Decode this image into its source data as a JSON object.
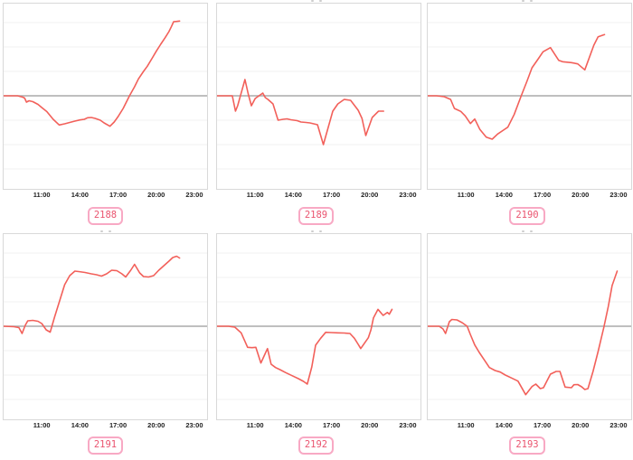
{
  "style": {
    "line_color": "#f2605a",
    "grid_color": "#f2f2f2",
    "baseline_color": "#aaaaaa",
    "box_border_color": "#d9d9d9",
    "axis_label_color": "#222222",
    "badge_border_color": "#f8a9c4",
    "badge_text_color": "#ea546f",
    "clipped_title_mark_color": "#c0c0c0"
  },
  "axis": {
    "tick_labels": [
      "11:00",
      "14:00",
      "17:00",
      "20:00",
      "23:00"
    ],
    "tick_hours": [
      11,
      14,
      17,
      20,
      23
    ],
    "domain_hours": [
      8,
      24
    ],
    "y_axis_labels": "none (unlabeled relative scale, gray baseline = 0)"
  },
  "chart_data": [
    {
      "type": "line",
      "badge": "2188",
      "title_clipped": false,
      "baseline": 0,
      "y_unit": "relative (no y-axis labels shown)",
      "points": [
        [
          8,
          0
        ],
        [
          9.1,
          0
        ],
        [
          9.5,
          -1.5
        ],
        [
          9.65,
          -2.5
        ],
        [
          9.8,
          -7
        ],
        [
          10.0,
          -5.5
        ],
        [
          10.3,
          -6.5
        ],
        [
          10.7,
          -9.5
        ],
        [
          11.0,
          -13
        ],
        [
          11.4,
          -17.5
        ],
        [
          11.9,
          -26
        ],
        [
          12.37,
          -32.3
        ],
        [
          12.8,
          -31
        ],
        [
          13.2,
          -29.5
        ],
        [
          13.6,
          -28
        ],
        [
          14.0,
          -26.7
        ],
        [
          14.35,
          -26
        ],
        [
          14.6,
          -24.3
        ],
        [
          14.9,
          -24
        ],
        [
          15.2,
          -25
        ],
        [
          15.6,
          -27
        ],
        [
          15.9,
          -30
        ],
        [
          16.36,
          -33.7
        ],
        [
          16.7,
          -29
        ],
        [
          17.0,
          -23
        ],
        [
          17.4,
          -14
        ],
        [
          17.9,
          0
        ],
        [
          18.3,
          10
        ],
        [
          18.6,
          18.7
        ],
        [
          19.0,
          27
        ],
        [
          19.3,
          32.7
        ],
        [
          19.7,
          42
        ],
        [
          20.0,
          49.3
        ],
        [
          20.35,
          57
        ],
        [
          20.7,
          64.3
        ],
        [
          21.0,
          71
        ],
        [
          21.2,
          76.7
        ],
        [
          21.37,
          82
        ],
        [
          21.6,
          82.3
        ],
        [
          21.84,
          82.7
        ]
      ]
    },
    {
      "type": "line",
      "badge": "2189",
      "title_clipped": true,
      "baseline": 0,
      "y_unit": "relative (no y-axis labels shown)",
      "points": [
        [
          8,
          0
        ],
        [
          9.2,
          0
        ],
        [
          9.45,
          -17
        ],
        [
          9.62,
          -11
        ],
        [
          9.9,
          3
        ],
        [
          10.2,
          18
        ],
        [
          10.45,
          2
        ],
        [
          10.7,
          -11
        ],
        [
          11.0,
          -3
        ],
        [
          11.3,
          0
        ],
        [
          11.6,
          3
        ],
        [
          11.8,
          -2
        ],
        [
          12.0,
          -4
        ],
        [
          12.4,
          -9
        ],
        [
          12.8,
          -27
        ],
        [
          13.2,
          -26
        ],
        [
          13.5,
          -25.5
        ],
        [
          13.8,
          -26.5
        ],
        [
          14.3,
          -27.5
        ],
        [
          14.6,
          -29
        ],
        [
          15.0,
          -29.5
        ],
        [
          15.3,
          -30
        ],
        [
          15.9,
          -32
        ],
        [
          16.36,
          -54
        ],
        [
          17.1,
          -17
        ],
        [
          17.5,
          -9
        ],
        [
          18.0,
          -4
        ],
        [
          18.5,
          -5
        ],
        [
          19.1,
          -16
        ],
        [
          19.4,
          -25
        ],
        [
          19.7,
          -44
        ],
        [
          20.2,
          -24
        ],
        [
          20.7,
          -17
        ],
        [
          21.1,
          -17
        ]
      ]
    },
    {
      "type": "line",
      "badge": "2190",
      "title_clipped": true,
      "baseline": 0,
      "y_unit": "relative (no y-axis labels shown)",
      "points": [
        [
          8,
          0
        ],
        [
          8.7,
          0
        ],
        [
          9.3,
          -1
        ],
        [
          9.8,
          -4
        ],
        [
          10.1,
          -14
        ],
        [
          10.6,
          -17.3
        ],
        [
          10.95,
          -22.3
        ],
        [
          11.36,
          -30.7
        ],
        [
          11.7,
          -25.7
        ],
        [
          12.1,
          -37.3
        ],
        [
          12.6,
          -45.7
        ],
        [
          13.07,
          -48
        ],
        [
          13.5,
          -42.3
        ],
        [
          13.95,
          -38
        ],
        [
          14.3,
          -34.7
        ],
        [
          14.8,
          -20.7
        ],
        [
          15.35,
          0
        ],
        [
          15.8,
          16
        ],
        [
          16.2,
          31
        ],
        [
          16.7,
          41
        ],
        [
          17.07,
          48.7
        ],
        [
          17.65,
          53.3
        ],
        [
          18.3,
          39.3
        ],
        [
          18.6,
          37.7
        ],
        [
          19.3,
          36.7
        ],
        [
          19.8,
          35.3
        ],
        [
          20.35,
          28.7
        ],
        [
          21.06,
          56
        ],
        [
          21.4,
          65.3
        ],
        [
          21.9,
          67.7
        ]
      ]
    },
    {
      "type": "line",
      "badge": "2191",
      "title_clipped": true,
      "baseline": 0,
      "y_unit": "relative (no y-axis labels shown)",
      "points": [
        [
          8,
          0
        ],
        [
          8.8,
          -0.5
        ],
        [
          9.2,
          -1.5
        ],
        [
          9.45,
          -8
        ],
        [
          9.7,
          1
        ],
        [
          9.9,
          6
        ],
        [
          10.3,
          6.5
        ],
        [
          10.7,
          5.5
        ],
        [
          11.0,
          3
        ],
        [
          11.35,
          -4
        ],
        [
          11.66,
          -6.5
        ],
        [
          12.0,
          10
        ],
        [
          12.4,
          28
        ],
        [
          12.8,
          46
        ],
        [
          13.2,
          56
        ],
        [
          13.6,
          61
        ],
        [
          13.9,
          60.5
        ],
        [
          14.4,
          59.5
        ],
        [
          14.9,
          58
        ],
        [
          15.3,
          57
        ],
        [
          15.7,
          55.5
        ],
        [
          16.1,
          58
        ],
        [
          16.5,
          62
        ],
        [
          16.9,
          61.5
        ],
        [
          17.3,
          58
        ],
        [
          17.6,
          54.5
        ],
        [
          18.0,
          62
        ],
        [
          18.3,
          68.5
        ],
        [
          18.7,
          59
        ],
        [
          19.0,
          55
        ],
        [
          19.4,
          54.5
        ],
        [
          19.8,
          56
        ],
        [
          20.2,
          62
        ],
        [
          20.6,
          67
        ],
        [
          21.0,
          72
        ],
        [
          21.3,
          76
        ],
        [
          21.6,
          77.5
        ],
        [
          21.84,
          75.5
        ]
      ]
    },
    {
      "type": "line",
      "badge": "2192",
      "title_clipped": true,
      "baseline": 0,
      "y_unit": "relative (no y-axis labels shown)",
      "points": [
        [
          8,
          0
        ],
        [
          8.9,
          0
        ],
        [
          9.4,
          -1
        ],
        [
          9.9,
          -7.3
        ],
        [
          10.4,
          -23.3
        ],
        [
          10.75,
          -23.7
        ],
        [
          11.05,
          -23.3
        ],
        [
          11.45,
          -40.7
        ],
        [
          11.7,
          -33
        ],
        [
          11.97,
          -24.7
        ],
        [
          12.25,
          -42
        ],
        [
          12.6,
          -45.7
        ],
        [
          12.95,
          -48
        ],
        [
          13.4,
          -51.3
        ],
        [
          13.9,
          -54.7
        ],
        [
          14.4,
          -58
        ],
        [
          14.8,
          -61
        ],
        [
          15.1,
          -64
        ],
        [
          15.45,
          -45
        ],
        [
          15.75,
          -21
        ],
        [
          16.15,
          -13.3
        ],
        [
          16.55,
          -6.7
        ],
        [
          17.0,
          -7
        ],
        [
          17.5,
          -7.3
        ],
        [
          18.0,
          -7.5
        ],
        [
          18.45,
          -8
        ],
        [
          18.8,
          -13.3
        ],
        [
          19.1,
          -20
        ],
        [
          19.3,
          -24.7
        ],
        [
          19.6,
          -18.7
        ],
        [
          19.9,
          -12.7
        ],
        [
          20.1,
          -4
        ],
        [
          20.3,
          9.3
        ],
        [
          20.66,
          18.7
        ],
        [
          21.06,
          12
        ],
        [
          21.4,
          15.3
        ],
        [
          21.55,
          13.3
        ],
        [
          21.76,
          18.7
        ]
      ]
    },
    {
      "type": "line",
      "badge": "2193",
      "title_clipped": true,
      "baseline": 0,
      "y_unit": "relative (no y-axis labels shown)",
      "points": [
        [
          8,
          0
        ],
        [
          8.9,
          0
        ],
        [
          9.2,
          -3
        ],
        [
          9.4,
          -8
        ],
        [
          9.7,
          5
        ],
        [
          9.9,
          7.5
        ],
        [
          10.3,
          7
        ],
        [
          10.7,
          4
        ],
        [
          11.1,
          0
        ],
        [
          11.35,
          -9
        ],
        [
          11.7,
          -20.7
        ],
        [
          12.05,
          -29
        ],
        [
          12.45,
          -37.3
        ],
        [
          12.85,
          -45.7
        ],
        [
          13.3,
          -49
        ],
        [
          13.7,
          -50.7
        ],
        [
          14.1,
          -54
        ],
        [
          14.6,
          -57.3
        ],
        [
          15.1,
          -60.7
        ],
        [
          15.7,
          -75.7
        ],
        [
          16.2,
          -66.7
        ],
        [
          16.5,
          -64
        ],
        [
          16.85,
          -69
        ],
        [
          17.1,
          -68
        ],
        [
          17.65,
          -53
        ],
        [
          18.1,
          -50
        ],
        [
          18.4,
          -50
        ],
        [
          18.8,
          -67.3
        ],
        [
          19.3,
          -68
        ],
        [
          19.5,
          -64.7
        ],
        [
          19.8,
          -64.5
        ],
        [
          20.1,
          -67
        ],
        [
          20.35,
          -70
        ],
        [
          20.6,
          -69
        ],
        [
          21.0,
          -50
        ],
        [
          21.4,
          -28
        ],
        [
          21.85,
          -1
        ],
        [
          22.2,
          22
        ],
        [
          22.5,
          45
        ],
        [
          22.9,
          61
        ]
      ]
    }
  ]
}
